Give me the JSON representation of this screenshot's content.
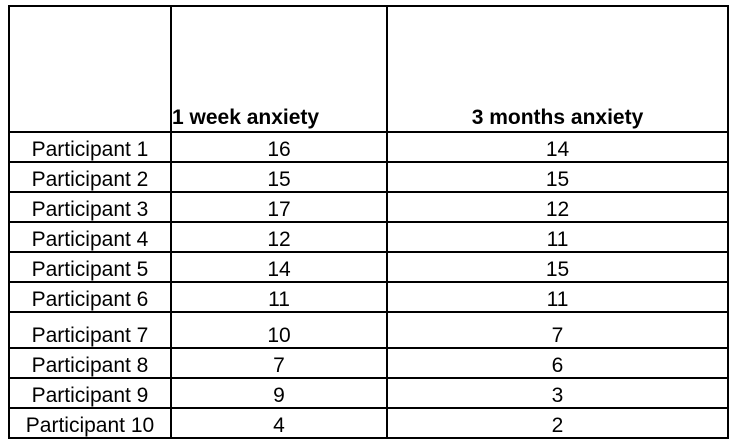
{
  "table": {
    "columns": [
      "",
      "1 week anxiety",
      "3 months anxiety"
    ],
    "rows": [
      {
        "label": "Participant 1",
        "week1": "16",
        "months3": "14"
      },
      {
        "label": "Participant 2",
        "week1": "15",
        "months3": "15"
      },
      {
        "label": "Participant 3",
        "week1": "17",
        "months3": "12"
      },
      {
        "label": "Participant 4",
        "week1": "12",
        "months3": "11"
      },
      {
        "label": "Participant 5",
        "week1": "14",
        "months3": "15"
      },
      {
        "label": "Participant 6",
        "week1": "11",
        "months3": "11"
      },
      {
        "label": "Participant 7",
        "week1": "10",
        "months3": "7"
      },
      {
        "label": "Participant 8",
        "week1": "7",
        "months3": "6"
      },
      {
        "label": "Participant 9",
        "week1": "9",
        "months3": "3"
      },
      {
        "label": "Participant 10",
        "week1": "4",
        "months3": "2"
      }
    ]
  }
}
